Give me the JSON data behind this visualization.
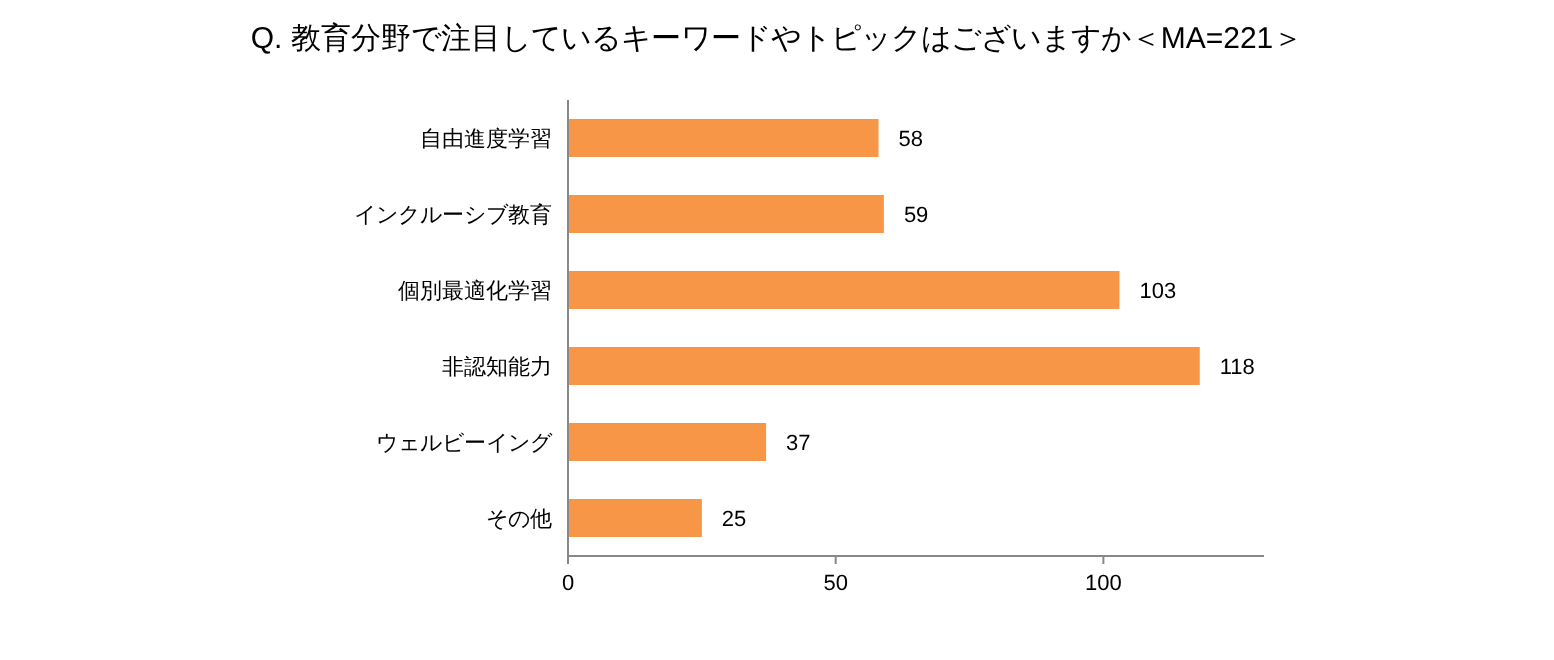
{
  "chart_data": {
    "type": "bar",
    "orientation": "horizontal",
    "title": "Q. 教育分野で注目しているキーワードやトピックはございますか＜MA=221＞",
    "categories": [
      "自由進度学習",
      "インクルーシブ教育",
      "個別最適化学習",
      "非認知能力",
      "ウェルビーイング",
      "その他"
    ],
    "values": [
      58,
      59,
      103,
      118,
      37,
      25
    ],
    "color": "#f79646",
    "data_labels": true,
    "xlim": [
      0,
      130
    ],
    "xticks": [
      0,
      50,
      100
    ]
  }
}
